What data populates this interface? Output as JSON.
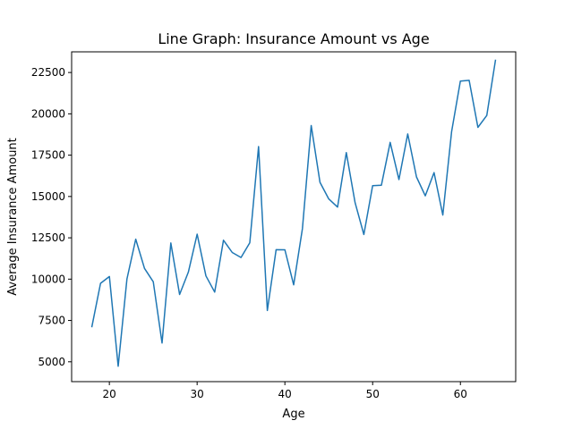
{
  "chart_data": {
    "type": "line",
    "title": "Line Graph: Insurance Amount vs Age",
    "xlabel": "Age",
    "ylabel": "Average Insurance Amount",
    "xlim": [
      15.7,
      66.3
    ],
    "ylim": [
      3800,
      23750
    ],
    "x_ticks": [
      20,
      30,
      40,
      50,
      60
    ],
    "y_ticks": [
      5000,
      7500,
      10000,
      12500,
      15000,
      17500,
      20000,
      22500
    ],
    "grid": false,
    "series": [
      {
        "color": "#1f77b4",
        "x": [
          18,
          19,
          20,
          21,
          22,
          23,
          24,
          25,
          26,
          27,
          28,
          29,
          30,
          31,
          32,
          33,
          34,
          35,
          36,
          37,
          38,
          39,
          40,
          41,
          42,
          43,
          44,
          45,
          46,
          47,
          48,
          49,
          50,
          51,
          52,
          53,
          54,
          55,
          56,
          57,
          58,
          59,
          60,
          61,
          62,
          63,
          64
        ],
        "y": [
          7086,
          9747,
          10159,
          4730,
          10012,
          12420,
          10648,
          9838,
          6133,
          12184,
          9069,
          10431,
          12720,
          10197,
          9220,
          12352,
          11614,
          11308,
          12204,
          18019,
          8102,
          11779,
          11772,
          9654,
          13061,
          19291,
          15859,
          14850,
          14361,
          17654,
          14631,
          12700,
          15654,
          15683,
          18273,
          16022,
          18783,
          16180,
          15041,
          16448,
          13879,
          18917,
          21980,
          22028,
          19180,
          19900,
          23275
        ]
      }
    ]
  }
}
